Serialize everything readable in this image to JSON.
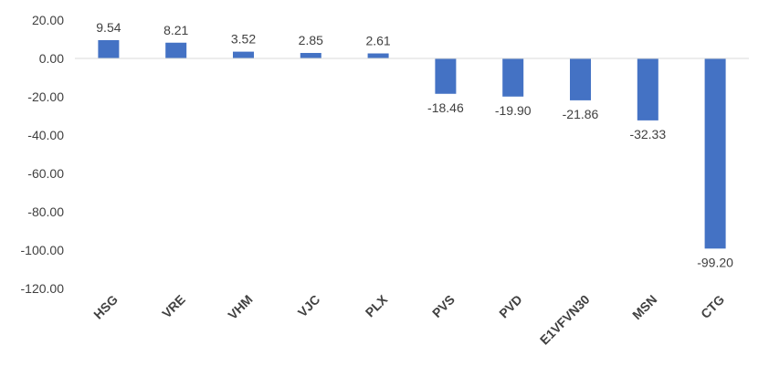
{
  "chart_data": {
    "type": "bar",
    "title": "",
    "xlabel": "",
    "ylabel": "",
    "categories": [
      "HSG",
      "VRE",
      "VHM",
      "VJC",
      "PLX",
      "PVS",
      "PVD",
      "E1VFVN30",
      "MSN",
      "CTG"
    ],
    "values": [
      9.54,
      8.21,
      3.52,
      2.85,
      2.61,
      -18.46,
      -19.9,
      -21.86,
      -32.33,
      -99.2
    ],
    "value_labels": [
      "9.54",
      "8.21",
      "3.52",
      "2.85",
      "2.61",
      "-18.46",
      "-19.90",
      "-21.86",
      "-32.33",
      "-99.20"
    ],
    "ylim": [
      -120,
      20
    ],
    "yticks": [
      20,
      0,
      -20,
      -40,
      -60,
      -80,
      -100,
      -120
    ],
    "ytick_labels": [
      "20.00",
      "0.00",
      "-20.00",
      "-40.00",
      "-60.00",
      "-80.00",
      "-100.00",
      "-120.00"
    ],
    "grid": false,
    "legend": "none",
    "bar_color": "#4472C4",
    "axis_color": "#D9D9D9",
    "text_color": "#404040"
  }
}
